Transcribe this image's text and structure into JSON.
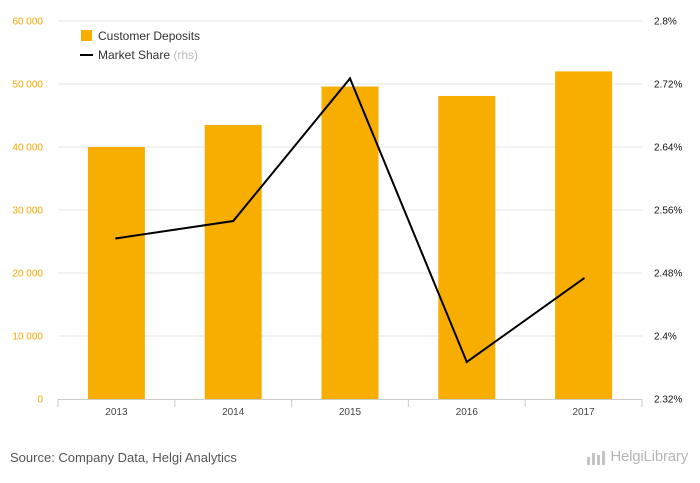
{
  "chart_data": {
    "type": "bar",
    "categories": [
      "2013",
      "2014",
      "2015",
      "2016",
      "2017"
    ],
    "series": [
      {
        "name": "Customer Deposits",
        "kind": "bar",
        "axis": "left",
        "values": [
          40000,
          43500,
          49600,
          48100,
          52000
        ]
      },
      {
        "name": "Market Share",
        "kind": "line",
        "axis": "right",
        "values": [
          2.524,
          2.546,
          2.727,
          2.367,
          2.473
        ]
      }
    ],
    "y_left": {
      "min": 0,
      "max": 60000,
      "ticks": [
        0,
        10000,
        20000,
        30000,
        40000,
        50000,
        60000
      ],
      "tick_labels": [
        "0",
        "10 000",
        "20 000",
        "30 000",
        "40 000",
        "50 000",
        "60 000"
      ]
    },
    "y_right": {
      "min": 2.32,
      "max": 2.8,
      "ticks": [
        2.32,
        2.4,
        2.48,
        2.56,
        2.64,
        2.72,
        2.8
      ],
      "tick_labels": [
        "2.32%",
        "2.4%",
        "2.48%",
        "2.56%",
        "2.64%",
        "2.72%",
        "2.8%"
      ]
    },
    "legend": {
      "placement": "top-left",
      "items": [
        {
          "label": "Customer Deposits",
          "suffix": ""
        },
        {
          "label": "Market Share",
          "suffix": "(rhs)"
        }
      ]
    },
    "grid": true,
    "colors": {
      "bar": "#f7ae00",
      "line": "#000000",
      "left_tick": "#f2a900",
      "right_tick": "#111111",
      "grid": "#e6e6e6",
      "x_tick": "#444444",
      "suffix": "#bbbbbb"
    }
  },
  "footer": {
    "source": "Source: Company Data, Helgi Analytics",
    "brand": "HelgiLibrary",
    "brand_icon": "bar-chart-logo-icon"
  }
}
